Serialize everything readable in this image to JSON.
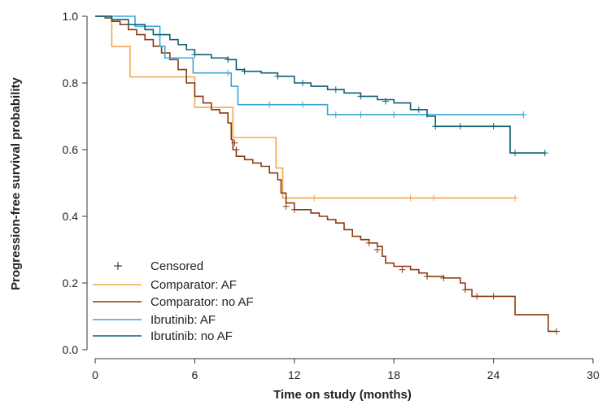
{
  "chart_data": {
    "type": "line",
    "xlabel": "Time on study (months)",
    "ylabel": "Progression-free survival probability",
    "xlim": [
      0,
      30
    ],
    "ylim": [
      0,
      1.0
    ],
    "xticks": [
      "0",
      "6",
      "12",
      "18",
      "24",
      "30"
    ],
    "yticks": [
      "0.0",
      "0.2",
      "0.4",
      "0.6",
      "0.8",
      "1.0"
    ],
    "grid": false,
    "legend_position": "bottom-left",
    "censored_label": "Censored",
    "series": [
      {
        "name": "Comparator: AF",
        "color": "#f5a54a",
        "steps": [
          [
            0,
            1.0
          ],
          [
            1.0,
            0.909
          ],
          [
            2.1,
            0.818
          ],
          [
            6.0,
            0.727
          ],
          [
            8.3,
            0.636
          ],
          [
            10.9,
            0.545
          ],
          [
            11.3,
            0.455
          ],
          [
            25.3,
            0.455
          ]
        ],
        "censored": [
          [
            13.2,
            0.455
          ],
          [
            19.0,
            0.455
          ],
          [
            20.4,
            0.455
          ],
          [
            25.3,
            0.455
          ]
        ]
      },
      {
        "name": "Comparator: no AF",
        "color": "#8b3a12",
        "steps": [
          [
            0,
            1.0
          ],
          [
            0.3,
            1.0
          ],
          [
            0.6,
            0.995
          ],
          [
            1.0,
            0.985
          ],
          [
            1.5,
            0.975
          ],
          [
            2.0,
            0.96
          ],
          [
            2.5,
            0.945
          ],
          [
            3.0,
            0.93
          ],
          [
            3.5,
            0.91
          ],
          [
            4.0,
            0.89
          ],
          [
            4.5,
            0.87
          ],
          [
            5.0,
            0.84
          ],
          [
            5.5,
            0.8
          ],
          [
            6.0,
            0.76
          ],
          [
            6.5,
            0.74
          ],
          [
            7.0,
            0.72
          ],
          [
            7.5,
            0.71
          ],
          [
            8.0,
            0.68
          ],
          [
            8.2,
            0.63
          ],
          [
            8.3,
            0.6
          ],
          [
            8.5,
            0.58
          ],
          [
            9.0,
            0.57
          ],
          [
            9.5,
            0.56
          ],
          [
            10.0,
            0.55
          ],
          [
            10.5,
            0.53
          ],
          [
            11.0,
            0.51
          ],
          [
            11.2,
            0.47
          ],
          [
            11.5,
            0.44
          ],
          [
            12.0,
            0.42
          ],
          [
            13.0,
            0.41
          ],
          [
            13.5,
            0.4
          ],
          [
            14.0,
            0.39
          ],
          [
            14.5,
            0.38
          ],
          [
            15.0,
            0.36
          ],
          [
            15.5,
            0.34
          ],
          [
            16.0,
            0.33
          ],
          [
            16.5,
            0.32
          ],
          [
            17.0,
            0.31
          ],
          [
            17.3,
            0.28
          ],
          [
            17.5,
            0.26
          ],
          [
            18.0,
            0.25
          ],
          [
            19.0,
            0.24
          ],
          [
            19.5,
            0.23
          ],
          [
            20.0,
            0.22
          ],
          [
            21.0,
            0.215
          ],
          [
            22.0,
            0.2
          ],
          [
            22.3,
            0.18
          ],
          [
            22.7,
            0.16
          ],
          [
            25.3,
            0.16
          ],
          [
            25.3,
            0.105
          ],
          [
            27.3,
            0.105
          ],
          [
            27.3,
            0.055
          ],
          [
            27.8,
            0.055
          ]
        ],
        "censored": [
          [
            8.4,
            0.62
          ],
          [
            8.5,
            0.6
          ],
          [
            11.5,
            0.43
          ],
          [
            12.0,
            0.42
          ],
          [
            16.5,
            0.32
          ],
          [
            17.0,
            0.3
          ],
          [
            18.5,
            0.24
          ],
          [
            20.0,
            0.22
          ],
          [
            21.0,
            0.215
          ],
          [
            22.3,
            0.18
          ],
          [
            23.0,
            0.16
          ],
          [
            24.0,
            0.16
          ],
          [
            27.8,
            0.055
          ]
        ]
      },
      {
        "name": "Ibrutinib: AF",
        "color": "#3aa7d8",
        "steps": [
          [
            0,
            1.0
          ],
          [
            2.4,
            1.0
          ],
          [
            2.4,
            0.97
          ],
          [
            3.9,
            0.97
          ],
          [
            3.9,
            0.91
          ],
          [
            4.2,
            0.91
          ],
          [
            4.2,
            0.875
          ],
          [
            5.9,
            0.875
          ],
          [
            5.9,
            0.83
          ],
          [
            8.2,
            0.83
          ],
          [
            8.2,
            0.79
          ],
          [
            8.6,
            0.79
          ],
          [
            8.6,
            0.735
          ],
          [
            14.0,
            0.735
          ],
          [
            14.0,
            0.705
          ],
          [
            25.8,
            0.705
          ]
        ],
        "censored": [
          [
            8.0,
            0.83
          ],
          [
            10.5,
            0.735
          ],
          [
            12.5,
            0.735
          ],
          [
            14.5,
            0.705
          ],
          [
            16.0,
            0.705
          ],
          [
            18.0,
            0.705
          ],
          [
            20.0,
            0.705
          ],
          [
            25.8,
            0.705
          ]
        ]
      },
      {
        "name": "Ibrutinib: no AF",
        "color": "#0f5f74",
        "steps": [
          [
            0,
            1.0
          ],
          [
            1.0,
            0.99
          ],
          [
            2.0,
            0.975
          ],
          [
            3.0,
            0.96
          ],
          [
            3.5,
            0.945
          ],
          [
            4.5,
            0.93
          ],
          [
            5.0,
            0.915
          ],
          [
            5.5,
            0.9
          ],
          [
            6.0,
            0.885
          ],
          [
            7.0,
            0.875
          ],
          [
            8.0,
            0.87
          ],
          [
            8.5,
            0.84
          ],
          [
            9.0,
            0.835
          ],
          [
            10.0,
            0.83
          ],
          [
            11.0,
            0.82
          ],
          [
            12.0,
            0.8
          ],
          [
            13.0,
            0.79
          ],
          [
            14.0,
            0.78
          ],
          [
            15.0,
            0.77
          ],
          [
            16.0,
            0.76
          ],
          [
            17.0,
            0.75
          ],
          [
            18.0,
            0.74
          ],
          [
            19.0,
            0.72
          ],
          [
            20.0,
            0.7
          ],
          [
            20.5,
            0.67
          ],
          [
            25.0,
            0.67
          ],
          [
            25.0,
            0.59
          ],
          [
            27.1,
            0.59
          ]
        ],
        "censored": [
          [
            6.0,
            0.885
          ],
          [
            8.0,
            0.87
          ],
          [
            9.0,
            0.835
          ],
          [
            11.0,
            0.82
          ],
          [
            12.5,
            0.8
          ],
          [
            14.5,
            0.78
          ],
          [
            16.0,
            0.76
          ],
          [
            17.5,
            0.745
          ],
          [
            19.5,
            0.72
          ],
          [
            20.5,
            0.67
          ],
          [
            22.0,
            0.67
          ],
          [
            24.0,
            0.67
          ],
          [
            25.3,
            0.59
          ],
          [
            27.1,
            0.59
          ]
        ]
      }
    ]
  }
}
